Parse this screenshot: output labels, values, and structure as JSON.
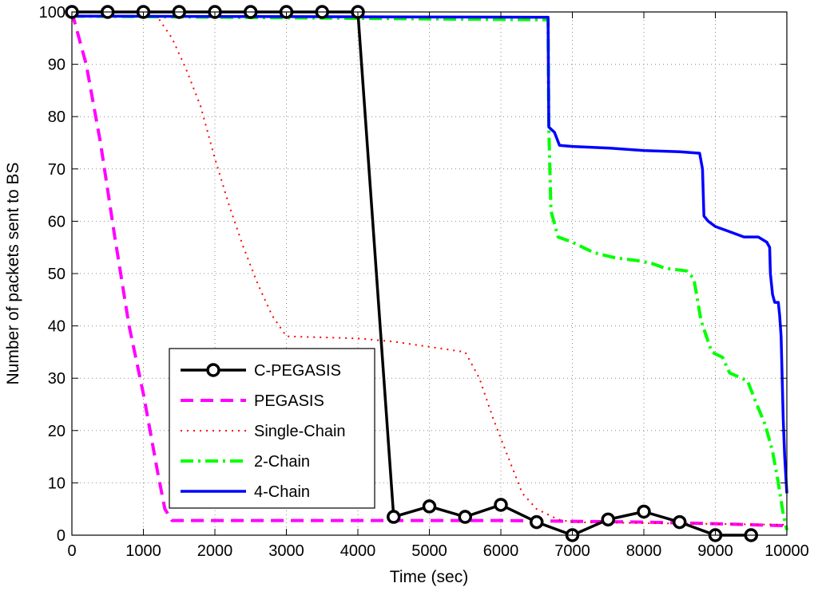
{
  "chart_data": {
    "type": "line",
    "title": "",
    "xlabel": "Time (sec)",
    "ylabel": "Number of packets sent to BS",
    "xlim": [
      0,
      10000
    ],
    "ylim": [
      0,
      100
    ],
    "xticks": [
      0,
      1000,
      2000,
      3000,
      4000,
      5000,
      6000,
      7000,
      8000,
      9000,
      10000
    ],
    "yticks": [
      0,
      10,
      20,
      30,
      40,
      50,
      60,
      70,
      80,
      90,
      100
    ],
    "grid": true,
    "legend_position": "bottom-left",
    "series": [
      {
        "name": "C-PEGASIS",
        "color": "#000000",
        "style": "solid-circle",
        "points": [
          [
            0,
            100
          ],
          [
            500,
            100
          ],
          [
            1000,
            100
          ],
          [
            1500,
            100
          ],
          [
            2000,
            100
          ],
          [
            2500,
            100
          ],
          [
            3000,
            100
          ],
          [
            3500,
            100
          ],
          [
            4000,
            100
          ],
          [
            4500,
            3.5
          ],
          [
            5000,
            5.5
          ],
          [
            5500,
            3.5
          ],
          [
            6000,
            5.8
          ],
          [
            6500,
            2.5
          ],
          [
            7000,
            0
          ],
          [
            7500,
            3
          ],
          [
            8000,
            4.5
          ],
          [
            8500,
            2.5
          ],
          [
            9000,
            0
          ],
          [
            9500,
            0
          ]
        ]
      },
      {
        "name": "PEGASIS",
        "color": "#ff00ff",
        "style": "dashed",
        "points": [
          [
            0,
            100
          ],
          [
            200,
            90
          ],
          [
            400,
            75
          ],
          [
            600,
            57
          ],
          [
            800,
            40
          ],
          [
            1000,
            27
          ],
          [
            1200,
            12
          ],
          [
            1300,
            5
          ],
          [
            1400,
            2.8
          ],
          [
            3000,
            2.8
          ],
          [
            6000,
            2.8
          ],
          [
            8000,
            2.5
          ],
          [
            9000,
            2.2
          ],
          [
            10000,
            1.8
          ]
        ]
      },
      {
        "name": "Single-Chain",
        "color": "#ff0000",
        "style": "dotted",
        "points": [
          [
            0,
            100
          ],
          [
            1000,
            100
          ],
          [
            1200,
            99
          ],
          [
            1400,
            95
          ],
          [
            1600,
            89
          ],
          [
            1800,
            82
          ],
          [
            2000,
            72
          ],
          [
            2200,
            63
          ],
          [
            2400,
            55
          ],
          [
            2600,
            48
          ],
          [
            2800,
            42
          ],
          [
            3000,
            38
          ],
          [
            3500,
            37.8
          ],
          [
            4000,
            37.6
          ],
          [
            4500,
            37
          ],
          [
            5000,
            36
          ],
          [
            5500,
            35
          ],
          [
            5700,
            30
          ],
          [
            5900,
            22
          ],
          [
            6100,
            15
          ],
          [
            6300,
            8
          ],
          [
            6500,
            5
          ],
          [
            6800,
            3
          ],
          [
            7000,
            2.5
          ],
          [
            8000,
            2.3
          ],
          [
            10000,
            2
          ]
        ]
      },
      {
        "name": "2-Chain",
        "color": "#00ff00",
        "style": "dashdot",
        "points": [
          [
            0,
            99.2
          ],
          [
            6600,
            98.5
          ],
          [
            6660,
            98.5
          ],
          [
            6670,
            78
          ],
          [
            6700,
            62
          ],
          [
            6800,
            57
          ],
          [
            7000,
            56
          ],
          [
            7300,
            54
          ],
          [
            7600,
            53
          ],
          [
            7900,
            52.5
          ],
          [
            8100,
            52
          ],
          [
            8300,
            51
          ],
          [
            8600,
            50.5
          ],
          [
            8700,
            49
          ],
          [
            8800,
            41
          ],
          [
            8950,
            35
          ],
          [
            9100,
            34
          ],
          [
            9200,
            31
          ],
          [
            9450,
            29.5
          ],
          [
            9550,
            26
          ],
          [
            9700,
            21
          ],
          [
            9800,
            16
          ],
          [
            9880,
            10
          ],
          [
            9950,
            4
          ],
          [
            10000,
            1
          ]
        ]
      },
      {
        "name": "4-Chain",
        "color": "#0000ff",
        "style": "solid",
        "points": [
          [
            0,
            99.2
          ],
          [
            6500,
            99
          ],
          [
            6660,
            99
          ],
          [
            6670,
            78
          ],
          [
            6750,
            77
          ],
          [
            6820,
            74.5
          ],
          [
            7000,
            74.3
          ],
          [
            7500,
            74
          ],
          [
            8000,
            73.5
          ],
          [
            8500,
            73.3
          ],
          [
            8780,
            73
          ],
          [
            8820,
            70
          ],
          [
            8840,
            61
          ],
          [
            8900,
            60
          ],
          [
            9000,
            59
          ],
          [
            9200,
            58
          ],
          [
            9400,
            57
          ],
          [
            9600,
            57
          ],
          [
            9720,
            56
          ],
          [
            9760,
            55
          ],
          [
            9770,
            50
          ],
          [
            9800,
            46
          ],
          [
            9830,
            44.5
          ],
          [
            9880,
            44.5
          ],
          [
            9900,
            42
          ],
          [
            9920,
            38
          ],
          [
            9950,
            22
          ],
          [
            9970,
            15
          ],
          [
            10000,
            8
          ]
        ]
      }
    ]
  }
}
